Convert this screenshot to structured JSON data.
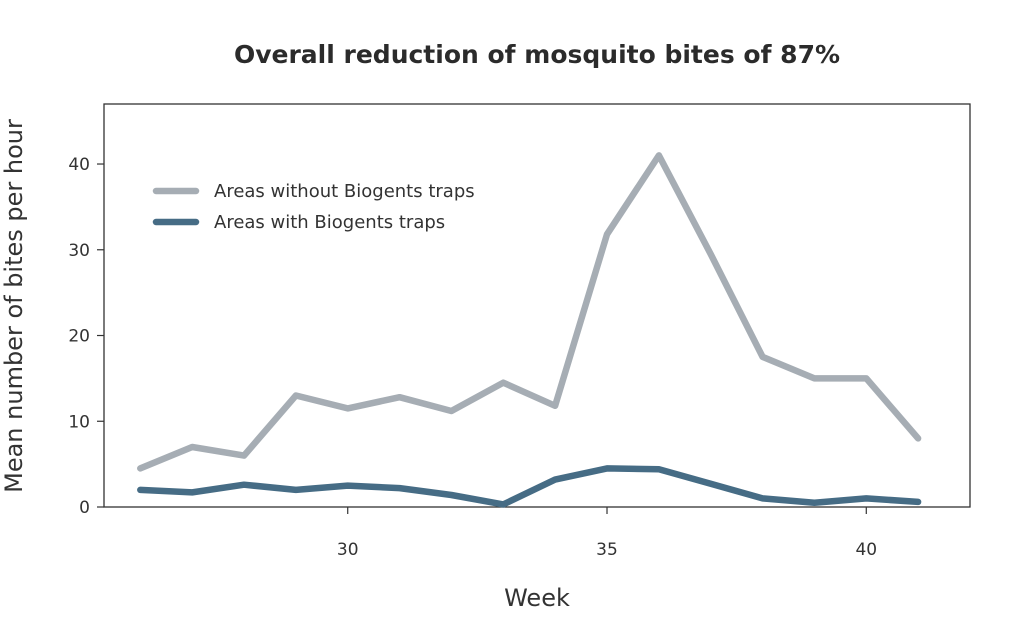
{
  "chart_data": {
    "type": "line",
    "title": "Overall reduction of mosquito bites of 87%",
    "xlabel": "Week",
    "ylabel": "Mean number of bites per hour",
    "xlim": [
      25.3,
      42
    ],
    "ylim": [
      0,
      47
    ],
    "x_ticks": [
      30,
      35,
      40
    ],
    "y_ticks": [
      0,
      10,
      20,
      30,
      40
    ],
    "x": [
      26,
      27,
      28,
      29,
      30,
      31,
      32,
      33,
      34,
      35,
      36,
      37,
      38,
      39,
      40,
      41
    ],
    "series": [
      {
        "name": "Areas without Biogents traps",
        "color": "#a6adb4",
        "values": [
          4.5,
          7.0,
          6.0,
          13.0,
          11.5,
          12.8,
          11.2,
          14.5,
          11.8,
          31.8,
          41.0,
          29.5,
          17.5,
          15.0,
          15.0,
          8.0
        ]
      },
      {
        "name": "Areas with Biogents traps",
        "color": "#466c85",
        "values": [
          2.0,
          1.7,
          2.6,
          2.0,
          2.5,
          2.2,
          1.4,
          0.3,
          3.2,
          4.5,
          4.4,
          2.7,
          1.0,
          0.5,
          1.0,
          0.6
        ]
      }
    ],
    "legend_position": "top-left",
    "grid": false
  }
}
